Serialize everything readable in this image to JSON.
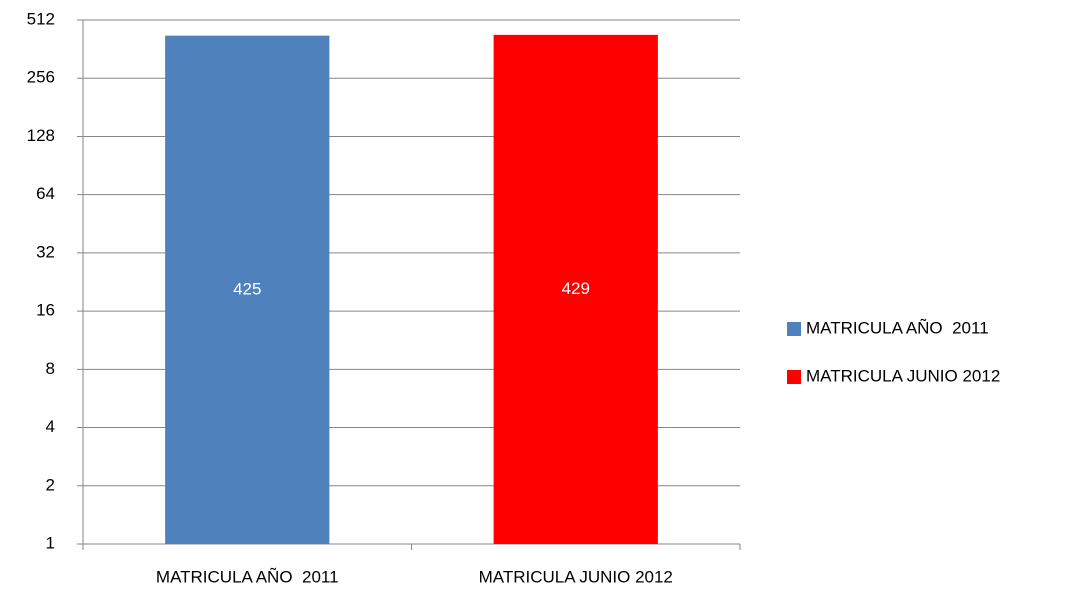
{
  "chart_data": {
    "type": "bar",
    "categories": [
      "MATRICULA AÑO  2011",
      "MATRICULA JUNIO 2012"
    ],
    "values": [
      425,
      429
    ],
    "colors": [
      "#4f81bd",
      "#ff0000"
    ],
    "log_scale": true,
    "log_base": 2,
    "ylim": [
      1,
      512
    ],
    "yticks": [
      1,
      2,
      4,
      8,
      16,
      32,
      64,
      128,
      256,
      512
    ],
    "grid": true,
    "legend": "right",
    "data_labels": true
  }
}
